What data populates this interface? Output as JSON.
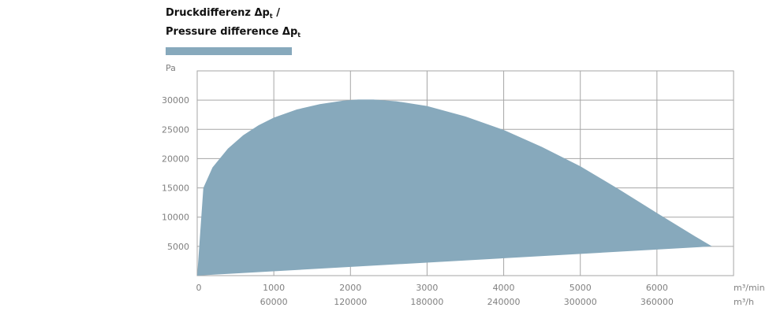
{
  "title": {
    "line1_text": "Druckdifferenz Δp",
    "line1_sub": "t",
    "line1_tail": " /",
    "line2_text": "Pressure difference Δp",
    "line2_sub": "t"
  },
  "colors": {
    "area": "#87a9bc",
    "grid": "#a6a6a6",
    "tick": "#808080"
  },
  "chart_data": {
    "type": "area",
    "ylabel": "Pa",
    "xlabel": "m³/min",
    "xlabel2": "m³/h",
    "xlim": [
      0,
      7000
    ],
    "ylim": [
      0,
      35000
    ],
    "y_ticks": [
      5000,
      10000,
      15000,
      20000,
      25000,
      30000
    ],
    "x_ticks": [
      0,
      1000,
      2000,
      3000,
      4000,
      5000,
      6000
    ],
    "x2_ticks": [
      {
        "x": 1000,
        "label": "60000"
      },
      {
        "x": 2000,
        "label": "120000"
      },
      {
        "x": 3000,
        "label": "180000"
      },
      {
        "x": 4000,
        "label": "240000"
      },
      {
        "x": 5000,
        "label": "300000"
      },
      {
        "x": 6000,
        "label": "360000"
      }
    ],
    "grid": true,
    "upper": [
      [
        0,
        0
      ],
      [
        80,
        15000
      ],
      [
        200,
        18500
      ],
      [
        400,
        21700
      ],
      [
        600,
        24000
      ],
      [
        800,
        25700
      ],
      [
        1000,
        27000
      ],
      [
        1300,
        28400
      ],
      [
        1600,
        29300
      ],
      [
        1900,
        29900
      ],
      [
        2100,
        30100
      ],
      [
        2300,
        30100
      ],
      [
        2600,
        29800
      ],
      [
        3000,
        29000
      ],
      [
        3500,
        27200
      ],
      [
        4000,
        24900
      ],
      [
        4500,
        22000
      ],
      [
        5000,
        18700
      ],
      [
        5500,
        14800
      ],
      [
        6000,
        10700
      ],
      [
        6500,
        6700
      ],
      [
        6720,
        5000
      ]
    ],
    "lower": [
      [
        6720,
        5000
      ],
      [
        0,
        0
      ]
    ]
  }
}
